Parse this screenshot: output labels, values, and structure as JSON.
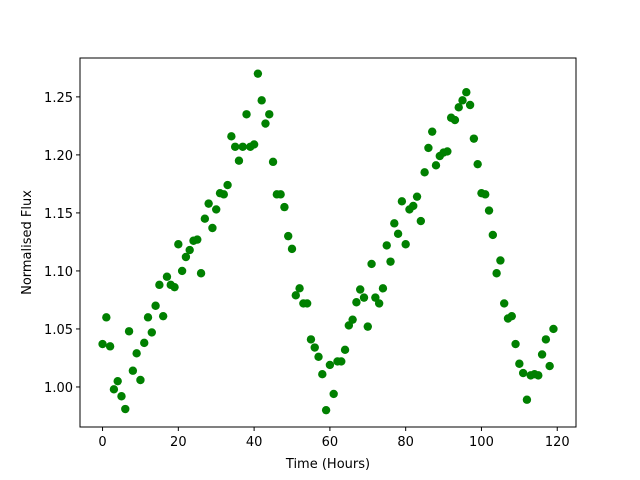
{
  "chart_data": {
    "type": "scatter",
    "x_label": "Time (Hours)",
    "y_label": "Normalised Flux",
    "color": "#008000",
    "x": [
      0,
      1,
      2,
      3,
      4,
      5,
      6,
      7,
      8,
      9,
      10,
      11,
      12,
      13,
      14,
      15,
      16,
      17,
      18,
      19,
      20,
      21,
      22,
      23,
      24,
      25,
      26,
      27,
      28,
      29,
      30,
      31,
      32,
      33,
      34,
      35,
      36,
      37,
      38,
      39,
      40,
      41,
      42,
      43,
      44,
      45,
      46,
      47,
      48,
      49,
      50,
      51,
      52,
      53,
      54,
      55,
      56,
      57,
      58,
      59,
      60,
      61,
      62,
      63,
      64,
      65,
      66,
      67,
      68,
      69,
      70,
      71,
      72,
      73,
      74,
      75,
      76,
      77,
      78,
      79,
      80,
      81,
      82,
      83,
      84,
      85,
      86,
      87,
      88,
      89,
      90,
      91,
      92,
      93,
      94,
      95,
      96,
      97,
      98,
      99,
      100,
      101,
      102,
      103,
      104,
      105,
      106,
      107,
      108,
      109,
      110,
      111,
      112,
      113,
      114,
      115,
      116,
      117,
      118,
      119
    ],
    "values": [
      1.037,
      1.06,
      1.035,
      0.998,
      1.005,
      0.992,
      0.981,
      1.048,
      1.014,
      1.029,
      1.006,
      1.038,
      1.06,
      1.047,
      1.07,
      1.088,
      1.061,
      1.095,
      1.088,
      1.086,
      1.123,
      1.1,
      1.112,
      1.118,
      1.126,
      1.127,
      1.098,
      1.145,
      1.158,
      1.137,
      1.153,
      1.167,
      1.166,
      1.174,
      1.216,
      1.207,
      1.195,
      1.207,
      1.235,
      1.207,
      1.209,
      1.27,
      1.247,
      1.227,
      1.235,
      1.194,
      1.166,
      1.166,
      1.155,
      1.13,
      1.119,
      1.079,
      1.085,
      1.072,
      1.072,
      1.041,
      1.034,
      1.026,
      1.011,
      0.98,
      1.019,
      0.994,
      1.022,
      1.022,
      1.032,
      1.053,
      1.058,
      1.073,
      1.084,
      1.077,
      1.052,
      1.106,
      1.077,
      1.072,
      1.085,
      1.122,
      1.108,
      1.141,
      1.132,
      1.16,
      1.123,
      1.153,
      1.156,
      1.164,
      1.143,
      1.185,
      1.206,
      1.22,
      1.191,
      1.199,
      1.202,
      1.203,
      1.232,
      1.23,
      1.241,
      1.247,
      1.254,
      1.243,
      1.214,
      1.192,
      1.167,
      1.166,
      1.152,
      1.131,
      1.098,
      1.109,
      1.072,
      1.059,
      1.061,
      1.037,
      1.02,
      1.012,
      0.989,
      1.01,
      1.011,
      1.01,
      1.028,
      1.041,
      1.018,
      1.05
    ],
    "xlim": [
      -5.95,
      124.95
    ],
    "xticks": [
      0,
      20,
      40,
      60,
      80,
      100,
      120
    ],
    "ylim": [
      0.9655,
      1.2835
    ],
    "yticks": [
      {
        "value": 1,
        "label": "1.00"
      },
      1.05,
      {
        "value": 1.1,
        "label": "1.10"
      },
      1.15,
      {
        "value": 1.2,
        "label": "1.20"
      },
      1.25
    ]
  }
}
